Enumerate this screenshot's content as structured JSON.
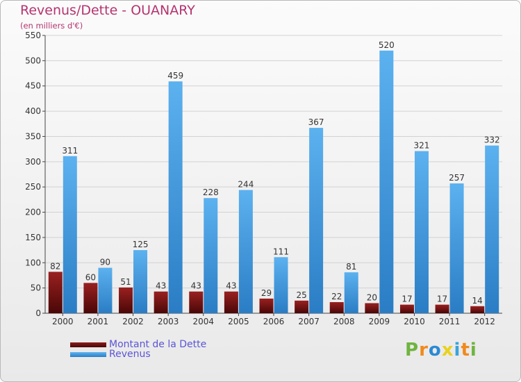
{
  "title": "Revenus/Dette - OUANARY",
  "subtitle": "(en milliers d'€)",
  "chart_data": {
    "type": "bar",
    "title": "Revenus/Dette - OUANARY",
    "ylabel": "(en milliers d'€)",
    "xlabel": "",
    "ylim": [
      0,
      550
    ],
    "yticks": [
      0,
      50,
      100,
      150,
      200,
      250,
      300,
      350,
      400,
      450,
      500,
      550
    ],
    "grid": true,
    "legend_position": "bottom-left",
    "categories": [
      "2000",
      "2001",
      "2002",
      "2003",
      "2004",
      "2005",
      "2006",
      "2007",
      "2008",
      "2009",
      "2010",
      "2011",
      "2012"
    ],
    "series": [
      {
        "name": "Montant de la Dette",
        "color": "#8b1c1c",
        "values": [
          82,
          60,
          51,
          43,
          43,
          43,
          29,
          25,
          22,
          20,
          17,
          17,
          14
        ]
      },
      {
        "name": "Revenus",
        "color": "#4aa3e4",
        "values": [
          311,
          90,
          125,
          459,
          228,
          244,
          111,
          367,
          81,
          520,
          321,
          257,
          332
        ]
      }
    ]
  },
  "legend": {
    "items": [
      {
        "label": "Montant de la Dette",
        "color": "#6b0f0f"
      },
      {
        "label": "Revenus",
        "color": "#3f96da"
      }
    ]
  },
  "logo": {
    "text": "Proxiti",
    "letters": [
      "P",
      "r",
      "o",
      "x",
      "i",
      "t",
      "i"
    ],
    "colors": [
      "#6fb43f",
      "#f08a1c",
      "#2a8ad4",
      "#e8d21f",
      "#3aa3d9",
      "#f08a1c",
      "#6fb43f"
    ]
  }
}
